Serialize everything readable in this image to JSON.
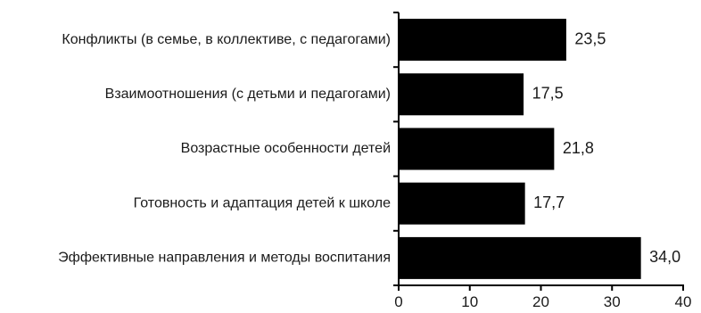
{
  "chart_data": {
    "type": "bar",
    "orientation": "horizontal",
    "categories": [
      "Конфликты (в семье, в коллективе, с педагогами)",
      "Взаимоотношения (с детьми и педагогами)",
      "Возрастные особенности детей",
      "Готовность и адаптация детей к школе",
      "Эффективные направления и методы воспитания"
    ],
    "values": [
      23.5,
      17.5,
      21.8,
      17.7,
      34.0
    ],
    "value_labels": [
      "23,5",
      "17,5",
      "21,8",
      "17,7",
      "34,0"
    ],
    "title": "",
    "xlabel": "",
    "ylabel": "",
    "xlim": [
      0,
      40
    ],
    "x_ticks": [
      0,
      10,
      20,
      30,
      40
    ],
    "x_tick_labels": [
      "0",
      "10",
      "20",
      "30",
      "40"
    ],
    "grid": false,
    "legend": "none",
    "bar_color": "#000000"
  }
}
